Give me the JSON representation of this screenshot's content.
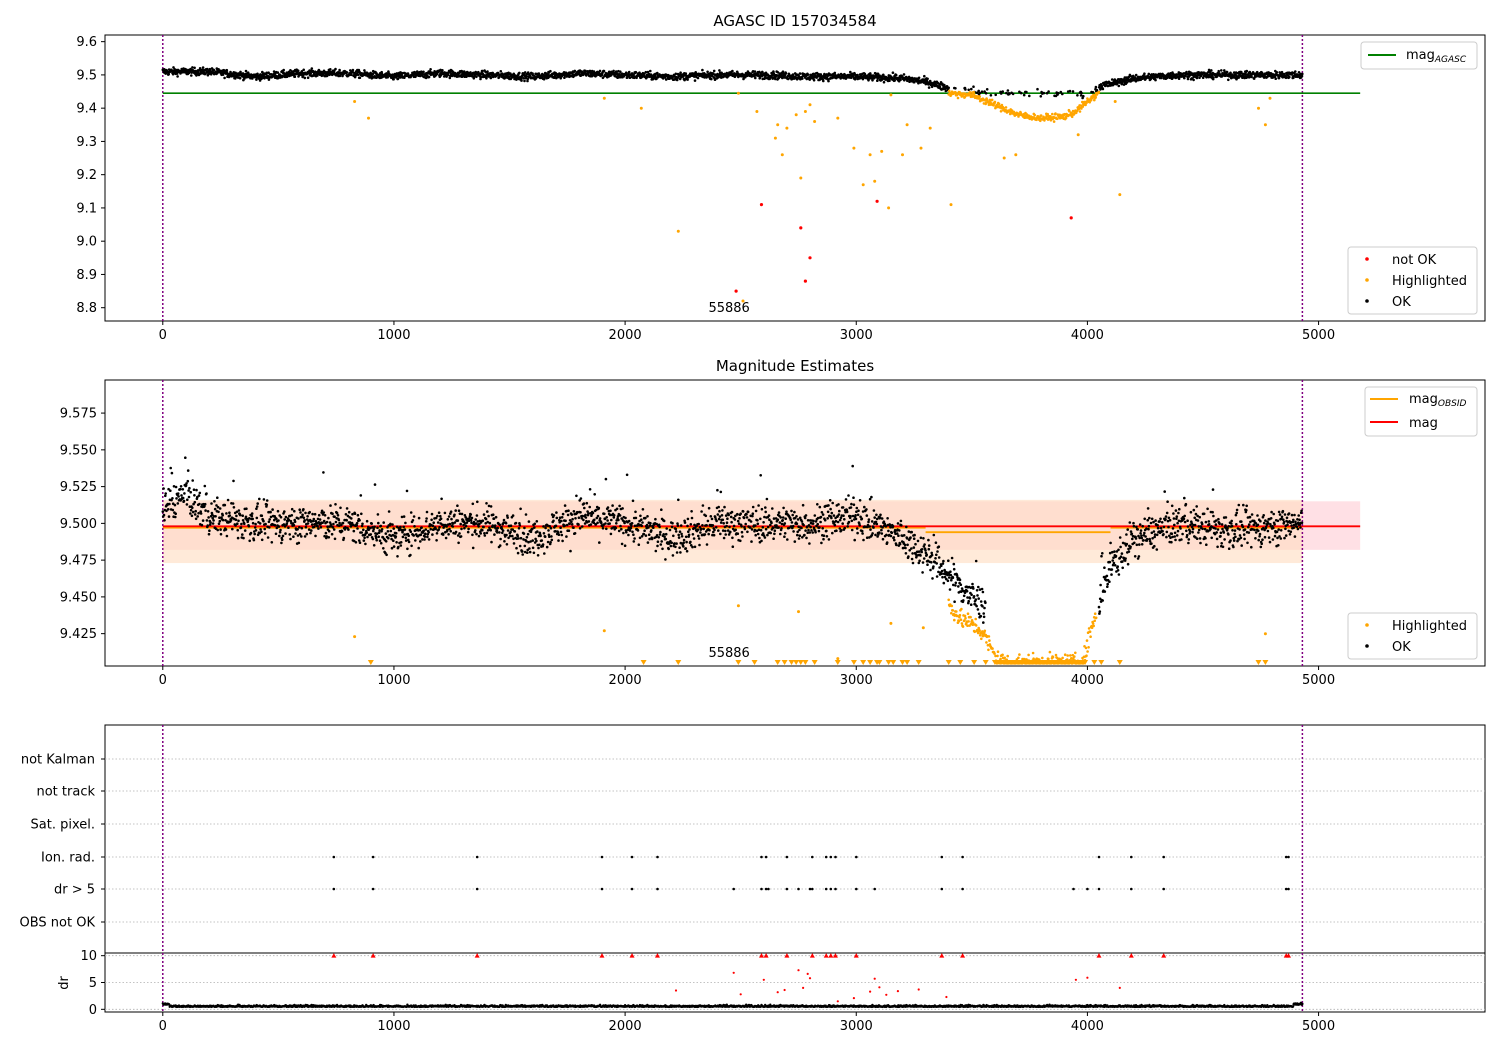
{
  "colors": {
    "ok": "#000000",
    "highlighted": "#ffa500",
    "not_ok": "#ff0000",
    "agasc_line": "#008000",
    "obsid_line": "#ffa500",
    "mag_line": "#ff0000",
    "band_orange": "#ffdcc0",
    "band_pink": "#ffd6dc",
    "bound_line": "#800080",
    "grid": "#b0b0b0"
  },
  "chart_data": [
    {
      "type": "scatter",
      "title": "AGASC ID 157034584",
      "xlim": [
        -250,
        5720
      ],
      "ylim": [
        8.76,
        9.62
      ],
      "x_ticks": [
        "0",
        "1000",
        "2000",
        "3000",
        "4000",
        "5000"
      ],
      "y_ticks": [
        "8.8",
        "8.9",
        "9.0",
        "9.1",
        "9.2",
        "9.3",
        "9.4",
        "9.5",
        "9.6"
      ],
      "legend_upper": [
        {
          "label": "mag",
          "subscript": "AGASC",
          "kind": "line"
        }
      ],
      "legend_lower": [
        {
          "label": "not OK",
          "kind": "dot_red"
        },
        {
          "label": "Highlighted",
          "kind": "dot_orange"
        },
        {
          "label": "OK",
          "kind": "dot_black"
        }
      ],
      "obsid_label": "55886",
      "obsid_label_x": 2450,
      "time_bounds": [
        0,
        4930
      ],
      "mag_agasc": 9.445,
      "mag_agasc_x_range": [
        0,
        5180
      ],
      "ok_series": [
        [
          0,
          9.51
        ],
        [
          200,
          9.51
        ],
        [
          400,
          9.495
        ],
        [
          600,
          9.505
        ],
        [
          800,
          9.505
        ],
        [
          1000,
          9.495
        ],
        [
          1200,
          9.505
        ],
        [
          1400,
          9.5
        ],
        [
          1600,
          9.495
        ],
        [
          1800,
          9.505
        ],
        [
          2000,
          9.5
        ],
        [
          2200,
          9.495
        ],
        [
          2400,
          9.5
        ],
        [
          2600,
          9.5
        ],
        [
          2800,
          9.495
        ],
        [
          3000,
          9.495
        ],
        [
          3200,
          9.49
        ],
        [
          3300,
          9.48
        ],
        [
          3400,
          9.46
        ],
        [
          3600,
          9.445
        ],
        [
          4000,
          9.445
        ],
        [
          4050,
          9.465
        ],
        [
          4200,
          9.49
        ],
        [
          4400,
          9.5
        ],
        [
          4600,
          9.5
        ],
        [
          4930,
          9.5
        ]
      ],
      "highlighted_dip": [
        [
          3400,
          9.445
        ],
        [
          3500,
          9.44
        ],
        [
          3600,
          9.41
        ],
        [
          3700,
          9.38
        ],
        [
          3800,
          9.37
        ],
        [
          3900,
          9.375
        ],
        [
          3950,
          9.39
        ],
        [
          4000,
          9.42
        ],
        [
          4050,
          9.445
        ]
      ],
      "highlighted_points": [
        [
          830,
          9.42
        ],
        [
          890,
          9.37
        ],
        [
          1910,
          9.43
        ],
        [
          2070,
          9.4
        ],
        [
          2230,
          9.03
        ],
        [
          2490,
          9.445
        ],
        [
          2510,
          8.82
        ],
        [
          2570,
          9.39
        ],
        [
          2650,
          9.31
        ],
        [
          2660,
          9.35
        ],
        [
          2680,
          9.26
        ],
        [
          2700,
          9.34
        ],
        [
          2740,
          9.38
        ],
        [
          2760,
          9.19
        ],
        [
          2780,
          9.39
        ],
        [
          2800,
          9.41
        ],
        [
          2820,
          9.36
        ],
        [
          2920,
          9.37
        ],
        [
          2990,
          9.28
        ],
        [
          3030,
          9.17
        ],
        [
          3060,
          9.26
        ],
        [
          3080,
          9.18
        ],
        [
          3110,
          9.27
        ],
        [
          3140,
          9.1
        ],
        [
          3150,
          9.44
        ],
        [
          3200,
          9.26
        ],
        [
          3220,
          9.35
        ],
        [
          3280,
          9.28
        ],
        [
          3320,
          9.34
        ],
        [
          3410,
          9.11
        ],
        [
          3640,
          9.25
        ],
        [
          3690,
          9.26
        ],
        [
          3960,
          9.32
        ],
        [
          4120,
          9.42
        ],
        [
          4140,
          9.14
        ],
        [
          4740,
          9.4
        ],
        [
          4770,
          9.35
        ],
        [
          4790,
          9.43
        ]
      ],
      "not_ok_points": [
        [
          2480,
          8.85
        ],
        [
          2590,
          9.11
        ],
        [
          2760,
          9.04
        ],
        [
          2780,
          8.88
        ],
        [
          2800,
          8.95
        ],
        [
          3090,
          9.12
        ],
        [
          3930,
          9.07
        ]
      ]
    },
    {
      "type": "scatter",
      "title": "Magnitude Estimates",
      "xlim": [
        -250,
        5720
      ],
      "ylim": [
        9.403,
        9.5975
      ],
      "x_ticks": [
        "0",
        "1000",
        "2000",
        "3000",
        "4000",
        "5000"
      ],
      "y_ticks": [
        "9.425",
        "9.450",
        "9.475",
        "9.500",
        "9.525",
        "9.550",
        "9.575"
      ],
      "legend_upper": [
        {
          "label": "mag",
          "subscript": "OBSID",
          "kind": "line_orange"
        },
        {
          "label": "mag",
          "subscript": "",
          "kind": "line_red"
        }
      ],
      "legend_lower": [
        {
          "label": "Highlighted",
          "kind": "dot_orange"
        },
        {
          "label": "OK",
          "kind": "dot_black"
        }
      ],
      "obsid_label": "55886",
      "obsid_label_x": 2450,
      "mag": 9.498,
      "mag_x_range": [
        0,
        5180
      ],
      "mag_band": [
        9.482,
        9.515
      ],
      "mag_obsid_segments": [
        [
          0,
          3300,
          9.497
        ],
        [
          3300,
          4100,
          9.494
        ],
        [
          4100,
          4930,
          9.497
        ]
      ],
      "obsid_band": [
        9.473,
        9.516
      ],
      "ok_series": [
        [
          0,
          9.51
        ],
        [
          100,
          9.52
        ],
        [
          200,
          9.505
        ],
        [
          400,
          9.5
        ],
        [
          600,
          9.5
        ],
        [
          800,
          9.5
        ],
        [
          1000,
          9.49
        ],
        [
          1200,
          9.5
        ],
        [
          1400,
          9.5
        ],
        [
          1600,
          9.49
        ],
        [
          1800,
          9.505
        ],
        [
          2000,
          9.5
        ],
        [
          2200,
          9.49
        ],
        [
          2400,
          9.5
        ],
        [
          2600,
          9.5
        ],
        [
          2800,
          9.5
        ],
        [
          3000,
          9.505
        ],
        [
          3200,
          9.49
        ],
        [
          3300,
          9.48
        ],
        [
          3400,
          9.465
        ],
        [
          3500,
          9.45
        ],
        [
          3550,
          9.445
        ],
        [
          4050,
          9.445
        ],
        [
          4100,
          9.47
        ],
        [
          4200,
          9.49
        ],
        [
          4400,
          9.5
        ],
        [
          4600,
          9.495
        ],
        [
          4930,
          9.5
        ]
      ],
      "highlighted_dip": [
        [
          3400,
          9.445
        ],
        [
          3450,
          9.435
        ],
        [
          3500,
          9.432
        ],
        [
          3550,
          9.425
        ],
        [
          3600,
          9.41
        ],
        [
          3650,
          9.405
        ],
        [
          3700,
          9.405
        ],
        [
          3800,
          9.405
        ],
        [
          3900,
          9.405
        ],
        [
          3960,
          9.405
        ],
        [
          3990,
          9.41
        ],
        [
          4010,
          9.425
        ],
        [
          4040,
          9.44
        ]
      ],
      "highlighted_points": [
        [
          830,
          9.423
        ],
        [
          2490,
          9.444
        ],
        [
          2750,
          9.44
        ],
        [
          2920,
          9.408
        ],
        [
          3150,
          9.432
        ],
        [
          3290,
          9.429
        ],
        [
          4770,
          9.425
        ],
        [
          1910,
          9.427
        ]
      ],
      "floor_markers": [
        900,
        2080,
        2230,
        2490,
        2560,
        2660,
        2690,
        2720,
        2740,
        2760,
        2780,
        2820,
        2920,
        2990,
        3030,
        3060,
        3090,
        3100,
        3140,
        3160,
        3200,
        3220,
        3270,
        3400,
        3450,
        3510,
        3560,
        4030,
        4060,
        4140,
        4740,
        4770
      ]
    },
    {
      "type": "scatter",
      "title": "",
      "xlim": [
        -250,
        5720
      ],
      "x_ticks": [
        "0",
        "1000",
        "2000",
        "3000",
        "4000",
        "5000"
      ],
      "flag_rows": [
        "not Kalman",
        "not track",
        "Sat. pixel.",
        "Ion. rad.",
        "dr > 5",
        "OBS not OK"
      ],
      "flags": {
        "Ion. rad.": [
          740,
          910,
          1360,
          1900,
          2030,
          2140,
          2590,
          2610,
          2700,
          2810,
          2870,
          2890,
          2910,
          3000,
          3370,
          3460,
          4050,
          4190,
          4330,
          4860,
          4870
        ],
        "dr > 5": [
          740,
          910,
          1360,
          1900,
          2030,
          2140,
          2470,
          2590,
          2610,
          2620,
          2700,
          2750,
          2800,
          2810,
          2870,
          2890,
          2910,
          3000,
          3080,
          3370,
          3460,
          3940,
          4000,
          4050,
          4190,
          4330,
          4860,
          4870
        ]
      },
      "dr_ylabel": "dr",
      "dr_ylim": [
        -0.5,
        10.5
      ],
      "dr_y_ticks": [
        "0",
        "5",
        "10"
      ],
      "dr_capped": [
        740,
        910,
        1360,
        1900,
        2030,
        2140,
        2590,
        2610,
        2700,
        2810,
        2870,
        2890,
        2910,
        3000,
        3370,
        3460,
        4050,
        4190,
        4330,
        4860,
        4870
      ],
      "dr_outliers": [
        [
          2220,
          3.5
        ],
        [
          2470,
          6.8
        ],
        [
          2500,
          2.8
        ],
        [
          2600,
          5.5
        ],
        [
          2660,
          3.2
        ],
        [
          2690,
          3.6
        ],
        [
          2750,
          7.3
        ],
        [
          2770,
          4.0
        ],
        [
          2790,
          6.6
        ],
        [
          2800,
          5.8
        ],
        [
          2920,
          1.5
        ],
        [
          2990,
          2.1
        ],
        [
          3060,
          3.3
        ],
        [
          3080,
          5.7
        ],
        [
          3100,
          4.1
        ],
        [
          3130,
          2.7
        ],
        [
          3180,
          3.4
        ],
        [
          3270,
          3.7
        ],
        [
          3950,
          5.5
        ],
        [
          4000,
          5.9
        ],
        [
          4140,
          4.0
        ],
        [
          3390,
          2.3
        ]
      ]
    }
  ]
}
